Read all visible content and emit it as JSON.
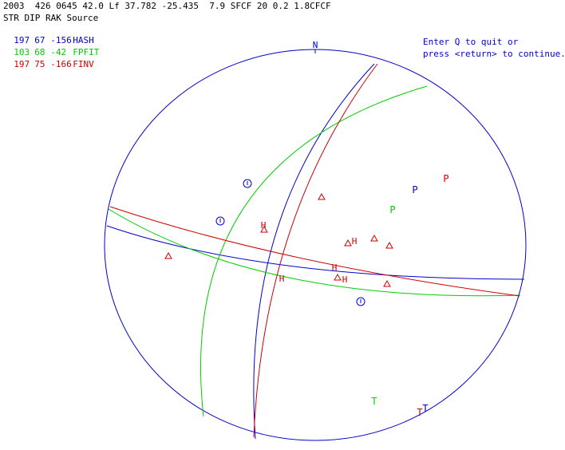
{
  "header": {
    "event_line": "2003  426 0645 42.0 Lf 37.782 -25.435  7.9 SFCF 20 0.2 1.8CFCF",
    "columns": "STR DIP RAK Source"
  },
  "solutions": [
    {
      "str": "197",
      "dip": "67",
      "rak": "-156",
      "source": "HASH",
      "color": "#0000cc"
    },
    {
      "str": "103",
      "dip": "68",
      "rak": "-42",
      "source": "FPFIT",
      "color": "#00cc00"
    },
    {
      "str": "197",
      "dip": "75",
      "rak": "-166",
      "source": "FINV",
      "color": "#cc0000"
    }
  ],
  "prompt": {
    "line1": "Enter Q to quit or",
    "line2": "press <return> to continue."
  },
  "north_label": "N",
  "colors": {
    "hash": "#0000cc",
    "fpfit": "#00cc00",
    "finv": "#cc0000",
    "text": "#000000"
  },
  "axes": [
    {
      "label": "P",
      "source": "FINV",
      "color": "#cc0000"
    },
    {
      "label": "P",
      "source": "HASH",
      "color": "#0000cc"
    },
    {
      "label": "P",
      "source": "FPFIT",
      "color": "#00cc00"
    },
    {
      "label": "T",
      "source": "FPFIT",
      "color": "#00cc00"
    },
    {
      "label": "T",
      "source": "HASH",
      "color": "#0000cc"
    },
    {
      "label": "T",
      "source": "FINV",
      "color": "#cc0000"
    }
  ],
  "stations": [
    {
      "label": "H",
      "symbol": "H"
    },
    {
      "label": "H",
      "symbol": "H"
    },
    {
      "label": "H",
      "symbol": "H"
    },
    {
      "label": "H",
      "symbol": "H"
    },
    {
      "label": "H",
      "symbol": "H"
    }
  ]
}
